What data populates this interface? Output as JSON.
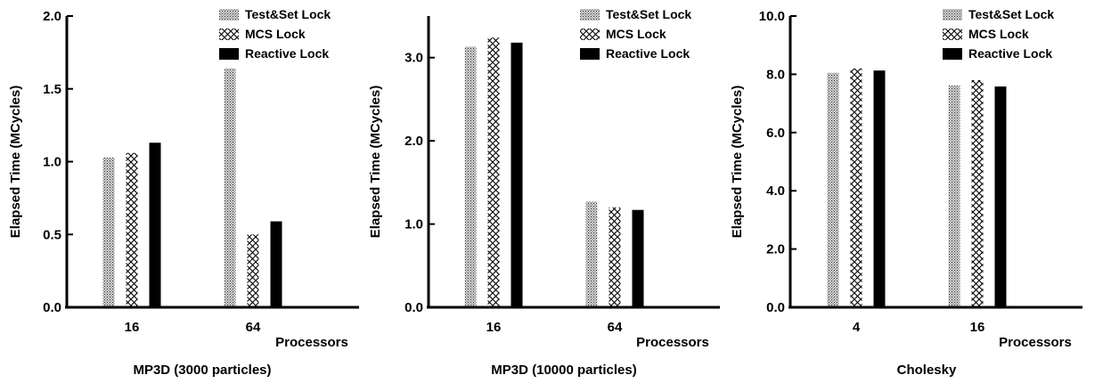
{
  "legend": {
    "labels": [
      "Test&Set Lock",
      "MCS Lock",
      "Reactive Lock"
    ]
  },
  "chart_data": [
    {
      "type": "bar",
      "title": "MP3D (3000 particles)",
      "xlabel": "Processors",
      "ylabel": "Elapsed Time (MCycles)",
      "categories": [
        "16",
        "64"
      ],
      "ylim": [
        0,
        2.0
      ],
      "yticks": [
        "0.0",
        "0.5",
        "1.0",
        "1.5",
        "2.0"
      ],
      "legend_position": "top-right",
      "grid": false,
      "series": [
        {
          "name": "Test&Set Lock",
          "values": [
            1.03,
            1.64
          ],
          "pattern": "stipple"
        },
        {
          "name": "MCS Lock",
          "values": [
            1.06,
            0.5
          ],
          "pattern": "crosshatch"
        },
        {
          "name": "Reactive Lock",
          "values": [
            1.13,
            0.59
          ],
          "pattern": "solid"
        }
      ]
    },
    {
      "type": "bar",
      "title": "MP3D (10000 particles)",
      "xlabel": "Processors",
      "ylabel": "Elapsed Time (MCycles)",
      "categories": [
        "16",
        "64"
      ],
      "ylim": [
        0,
        3.5
      ],
      "yticks": [
        "0.0",
        "1.0",
        "2.0",
        "3.0"
      ],
      "legend_position": "top-right",
      "grid": false,
      "series": [
        {
          "name": "Test&Set Lock",
          "values": [
            3.13,
            1.27
          ],
          "pattern": "stipple"
        },
        {
          "name": "MCS Lock",
          "values": [
            3.24,
            1.2
          ],
          "pattern": "crosshatch"
        },
        {
          "name": "Reactive Lock",
          "values": [
            3.18,
            1.17
          ],
          "pattern": "solid"
        }
      ]
    },
    {
      "type": "bar",
      "title": "Cholesky",
      "xlabel": "Processors",
      "ylabel": "Elapsed Time (MCycles)",
      "categories": [
        "4",
        "16"
      ],
      "ylim": [
        0,
        10.0
      ],
      "yticks": [
        "0.0",
        "2.0",
        "4.0",
        "6.0",
        "8.0",
        "10.0"
      ],
      "legend_position": "top-right",
      "grid": false,
      "series": [
        {
          "name": "Test&Set Lock",
          "values": [
            8.05,
            7.62
          ],
          "pattern": "stipple"
        },
        {
          "name": "MCS Lock",
          "values": [
            8.2,
            7.8
          ],
          "pattern": "crosshatch"
        },
        {
          "name": "Reactive Lock",
          "values": [
            8.13,
            7.58
          ],
          "pattern": "solid"
        }
      ]
    }
  ]
}
